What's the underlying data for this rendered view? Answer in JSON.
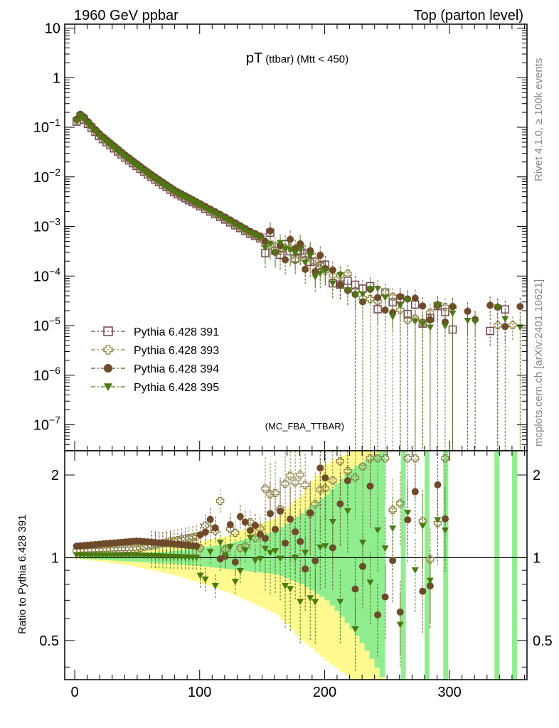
{
  "header": {
    "left": "1960 GeV ppbar",
    "right": "Top (parton level)"
  },
  "side_labels": {
    "rivet": "Rivet 4.1.0, ≥ 100k events",
    "mcplots": "mcplots.cern.ch [arXiv:2401.10621]"
  },
  "colors": {
    "s391": "#734052",
    "s393": "#8b8447",
    "s394": "#6e4a2a",
    "s395": "#4b7a12",
    "band_green": "#90ee90",
    "band_yellow": "#fffa90"
  },
  "chart_data": [
    {
      "type": "scatter",
      "panel": "main",
      "title": "pT",
      "title_sub": "(ttbar)",
      "title_cut": "(Mtt < 450)",
      "analysis_tag": "(MC_FBA_TTBAR)",
      "xlabel": "",
      "ylabel": "",
      "yscale": "log",
      "xlim": [
        -8,
        362
      ],
      "ylim": [
        3e-08,
        12
      ],
      "y_ticks": [
        {
          "value": 10,
          "base": "10",
          "exp": ""
        },
        {
          "value": 1,
          "base": "1",
          "exp": ""
        },
        {
          "value": 0.1,
          "base": "10",
          "exp": "−1"
        },
        {
          "value": 0.01,
          "base": "10",
          "exp": "−2"
        },
        {
          "value": 0.001,
          "base": "10",
          "exp": "−3"
        },
        {
          "value": 0.0001,
          "base": "10",
          "exp": "−4"
        },
        {
          "value": 1e-05,
          "base": "10",
          "exp": "−5"
        },
        {
          "value": 1e-06,
          "base": "10",
          "exp": "−6"
        },
        {
          "value": 1e-07,
          "base": "10",
          "exp": "−7"
        }
      ],
      "legend_position": "lower-left",
      "series": [
        {
          "name": "Pythia 6.428 391",
          "marker": "open-square",
          "color_key": "s391",
          "scale": 1.0
        },
        {
          "name": "Pythia 6.428 393",
          "marker": "open-cross",
          "color_key": "s393",
          "scale": 1.06
        },
        {
          "name": "Pythia 6.428 394",
          "marker": "filled-circle",
          "color_key": "s394",
          "scale": 1.12
        },
        {
          "name": "Pythia 6.428 395",
          "marker": "filled-triangle-down",
          "color_key": "s395",
          "scale": 1.04
        }
      ],
      "reference_curve": {
        "x": [
          1.5,
          5,
          10,
          20,
          40,
          60,
          80,
          100,
          120,
          140,
          160,
          180,
          200,
          220,
          240,
          260,
          280,
          300,
          320,
          350
        ],
        "y": [
          0.13,
          0.17,
          0.12,
          0.065,
          0.025,
          0.0105,
          0.0048,
          0.0026,
          0.0014,
          0.00072,
          0.00042,
          0.00025,
          0.00012,
          6e-05,
          3.5e-05,
          2.2e-05,
          1.6e-05,
          1.4e-05,
          1.3e-05,
          1.3e-05
        ]
      }
    },
    {
      "type": "scatter",
      "panel": "ratio",
      "ylabel": "Ratio to Pythia 6.428 391",
      "yscale": "log",
      "xlim": [
        -8,
        362
      ],
      "ylim": [
        0.36,
        2.45
      ],
      "x_ticks": [
        0,
        100,
        200,
        300
      ],
      "y_ticks": [
        0.5,
        1,
        2
      ],
      "reference_line": 1.0,
      "band_green": {
        "x": [
          0,
          40,
          80,
          120,
          160,
          180,
          200,
          220,
          245
        ],
        "lo": [
          0.995,
          0.97,
          0.95,
          0.91,
          0.87,
          0.8,
          0.7,
          0.55,
          0.36
        ],
        "hi": [
          1.005,
          1.03,
          1.06,
          1.12,
          1.25,
          1.45,
          1.7,
          2.1,
          2.45
        ]
      },
      "band_yellow": {
        "x": [
          0,
          40,
          80,
          120,
          160,
          180,
          200,
          220,
          245
        ],
        "lo": [
          0.99,
          0.94,
          0.86,
          0.75,
          0.62,
          0.5,
          0.42,
          0.36,
          0.36
        ],
        "hi": [
          1.01,
          1.05,
          1.1,
          1.2,
          1.4,
          1.7,
          2.2,
          2.45,
          2.45
        ]
      },
      "spike_bins_x": [
        263,
        282,
        297,
        338,
        352
      ],
      "series_trend": [
        {
          "key": "s393",
          "x": [
            0,
            50,
            100,
            150,
            200,
            240
          ],
          "y": [
            1.06,
            1.08,
            1.2,
            1.45,
            1.8,
            1.6
          ]
        },
        {
          "key": "s394",
          "x": [
            0,
            50,
            100,
            150,
            200,
            240
          ],
          "y": [
            1.1,
            1.15,
            1.1,
            1.2,
            1.35,
            1.1
          ]
        },
        {
          "key": "s395",
          "x": [
            0,
            50,
            100,
            150,
            200,
            240
          ],
          "y": [
            1.02,
            1.02,
            1.0,
            0.95,
            0.95,
            0.9
          ]
        }
      ]
    }
  ]
}
